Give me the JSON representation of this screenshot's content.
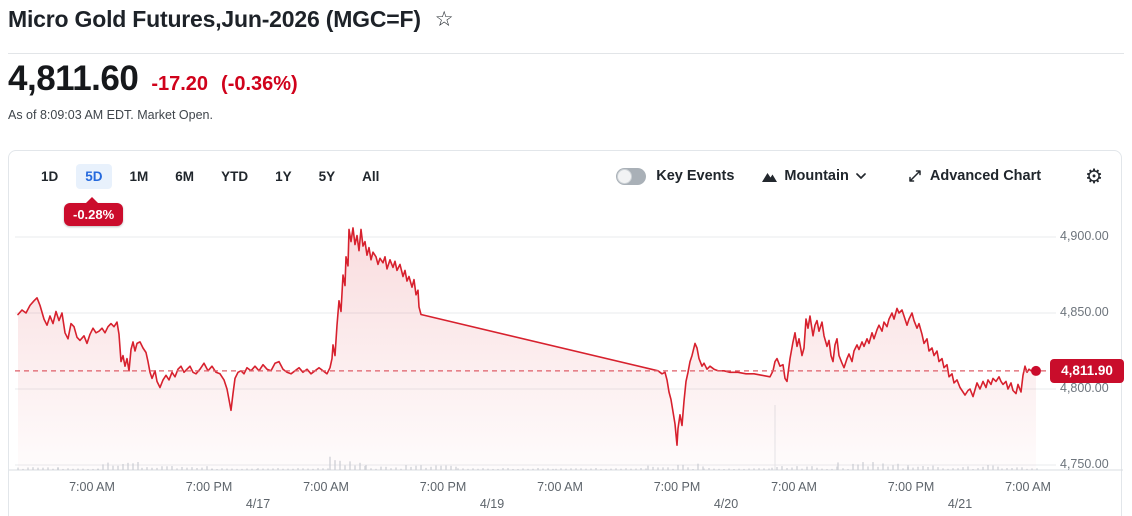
{
  "header": {
    "title": "Micro Gold Futures,Jun-2026 (MGC=F)",
    "price": "4,811.60",
    "change": "-17.20",
    "change_pct": "(-0.36%)",
    "as_of": "As of 8:09:03 AM EDT. Market Open."
  },
  "toolbar": {
    "ranges": [
      {
        "label": "1D",
        "selected": false
      },
      {
        "label": "5D",
        "selected": true
      },
      {
        "label": "1M",
        "selected": false
      },
      {
        "label": "6M",
        "selected": false
      },
      {
        "label": "YTD",
        "selected": false
      },
      {
        "label": "1Y",
        "selected": false
      },
      {
        "label": "5Y",
        "selected": false
      },
      {
        "label": "All",
        "selected": false
      }
    ],
    "range_badge": "-0.28%",
    "key_events_label": "Key Events",
    "key_events_enabled": false,
    "chart_type_label": "Mountain",
    "advanced_chart_label": "Advanced Chart",
    "settings_icon": "gear"
  },
  "colors": {
    "negative_text": "#d0021b",
    "badge_red": "#cb0c2c",
    "line_red": "#d7212e",
    "tab_blue": "#2569dd",
    "gridline": "#e9ebee"
  },
  "chart_data": {
    "type": "area",
    "symbol": "MGC=F",
    "legend": "none",
    "grid": true,
    "last_price": 4811.9,
    "last_price_label": "4,811.90",
    "ylim": [
      4740,
      4915
    ],
    "y_ticks": [
      {
        "label": "4,900.00",
        "value": 4900
      },
      {
        "label": "4,850.00",
        "value": 4850
      },
      {
        "label": "4,800.00",
        "value": 4800
      },
      {
        "label": "4,750.00",
        "value": 4750
      }
    ],
    "x_time_ticks": [
      {
        "label": "7:00 AM",
        "x": 92
      },
      {
        "label": "7:00 PM",
        "x": 209
      },
      {
        "label": "7:00 AM",
        "x": 326
      },
      {
        "label": "7:00 PM",
        "x": 443
      },
      {
        "label": "7:00 AM",
        "x": 560
      },
      {
        "label": "7:00 PM",
        "x": 677
      },
      {
        "label": "7:00 AM",
        "x": 794
      },
      {
        "label": "7:00 PM",
        "x": 911
      },
      {
        "label": "7:00 AM",
        "x": 1028
      }
    ],
    "x_date_ticks": [
      {
        "label": "4/17",
        "x": 258
      },
      {
        "label": "4/19",
        "x": 492
      },
      {
        "label": "4/20",
        "x": 726
      },
      {
        "label": "4/21",
        "x": 960
      }
    ],
    "x_session_gridline": 775,
    "points": [
      [
        18,
        4849
      ],
      [
        22,
        4852
      ],
      [
        26,
        4850
      ],
      [
        30,
        4855
      ],
      [
        34,
        4858
      ],
      [
        37,
        4860
      ],
      [
        40,
        4855
      ],
      [
        44,
        4846
      ],
      [
        47,
        4842
      ],
      [
        50,
        4848
      ],
      [
        53,
        4843
      ],
      [
        56,
        4851
      ],
      [
        59,
        4845
      ],
      [
        62,
        4850
      ],
      [
        65,
        4837
      ],
      [
        68,
        4833
      ],
      [
        71,
        4843
      ],
      [
        74,
        4841
      ],
      [
        77,
        4834
      ],
      [
        80,
        4832
      ],
      [
        84,
        4835
      ],
      [
        87,
        4830
      ],
      [
        90,
        4836
      ],
      [
        93,
        4840
      ],
      [
        96,
        4837
      ],
      [
        99,
        4838
      ],
      [
        102,
        4840
      ],
      [
        105,
        4837
      ],
      [
        108,
        4841
      ],
      [
        111,
        4843
      ],
      [
        114,
        4841
      ],
      [
        117,
        4844
      ],
      [
        119,
        4836
      ],
      [
        121,
        4818
      ],
      [
        123,
        4822
      ],
      [
        125,
        4815
      ],
      [
        127,
        4820
      ],
      [
        129,
        4812
      ],
      [
        131,
        4826
      ],
      [
        133,
        4831
      ],
      [
        135,
        4825
      ],
      [
        137,
        4830
      ],
      [
        140,
        4831
      ],
      [
        143,
        4827
      ],
      [
        146,
        4824
      ],
      [
        148,
        4818
      ],
      [
        150,
        4811
      ],
      [
        152,
        4807
      ],
      [
        155,
        4812
      ],
      [
        157,
        4805
      ],
      [
        160,
        4801
      ],
      [
        163,
        4806
      ],
      [
        166,
        4809
      ],
      [
        169,
        4806
      ],
      [
        172,
        4811
      ],
      [
        175,
        4808
      ],
      [
        178,
        4813
      ],
      [
        181,
        4815
      ],
      [
        184,
        4811
      ],
      [
        187,
        4813
      ],
      [
        190,
        4815
      ],
      [
        193,
        4811
      ],
      [
        196,
        4810
      ],
      [
        200,
        4813
      ],
      [
        204,
        4817
      ],
      [
        208,
        4812
      ],
      [
        212,
        4815
      ],
      [
        216,
        4811
      ],
      [
        220,
        4810
      ],
      [
        224,
        4806
      ],
      [
        227,
        4800
      ],
      [
        229,
        4793
      ],
      [
        231,
        4786
      ],
      [
        233,
        4797
      ],
      [
        235,
        4807
      ],
      [
        238,
        4811
      ],
      [
        241,
        4812
      ],
      [
        244,
        4810
      ],
      [
        247,
        4814
      ],
      [
        251,
        4812
      ],
      [
        255,
        4815
      ],
      [
        259,
        4812
      ],
      [
        263,
        4816
      ],
      [
        267,
        4813
      ],
      [
        271,
        4812
      ],
      [
        275,
        4817
      ],
      [
        279,
        4818
      ],
      [
        283,
        4813
      ],
      [
        287,
        4811
      ],
      [
        291,
        4810
      ],
      [
        295,
        4812
      ],
      [
        299,
        4814
      ],
      [
        303,
        4811
      ],
      [
        307,
        4813
      ],
      [
        311,
        4810
      ],
      [
        315,
        4812
      ],
      [
        319,
        4814
      ],
      [
        323,
        4812
      ],
      [
        327,
        4810
      ],
      [
        330,
        4814
      ],
      [
        332,
        4820
      ],
      [
        333,
        4829
      ],
      [
        335,
        4822
      ],
      [
        337,
        4842
      ],
      [
        339,
        4858
      ],
      [
        341,
        4851
      ],
      [
        343,
        4875
      ],
      [
        345,
        4868
      ],
      [
        346,
        4887
      ],
      [
        348,
        4881
      ],
      [
        349,
        4905
      ],
      [
        351,
        4897
      ],
      [
        353,
        4906
      ],
      [
        355,
        4895
      ],
      [
        357,
        4901
      ],
      [
        359,
        4891
      ],
      [
        361,
        4905
      ],
      [
        363,
        4894
      ],
      [
        365,
        4897
      ],
      [
        367,
        4888
      ],
      [
        369,
        4893
      ],
      [
        371,
        4885
      ],
      [
        373,
        4890
      ],
      [
        376,
        4887
      ],
      [
        378,
        4882
      ],
      [
        380,
        4886
      ],
      [
        383,
        4883
      ],
      [
        385,
        4887
      ],
      [
        387,
        4879
      ],
      [
        390,
        4885
      ],
      [
        393,
        4880
      ],
      [
        395,
        4884
      ],
      [
        397,
        4878
      ],
      [
        400,
        4882
      ],
      [
        403,
        4874
      ],
      [
        405,
        4878
      ],
      [
        407,
        4871
      ],
      [
        409,
        4874
      ],
      [
        412,
        4867
      ],
      [
        414,
        4872
      ],
      [
        416,
        4862
      ],
      [
        418,
        4865
      ],
      [
        419,
        4854
      ],
      [
        421,
        4849
      ],
      [
        658,
        4812
      ],
      [
        662,
        4810
      ],
      [
        665,
        4811
      ],
      [
        667,
        4806
      ],
      [
        669,
        4798
      ],
      [
        671,
        4793
      ],
      [
        673,
        4785
      ],
      [
        675,
        4777
      ],
      [
        677,
        4763
      ],
      [
        678,
        4774
      ],
      [
        680,
        4783
      ],
      [
        682,
        4776
      ],
      [
        684,
        4792
      ],
      [
        686,
        4805
      ],
      [
        688,
        4811
      ],
      [
        690,
        4818
      ],
      [
        692,
        4822
      ],
      [
        695,
        4830
      ],
      [
        697,
        4827
      ],
      [
        699,
        4820
      ],
      [
        702,
        4815
      ],
      [
        704,
        4817
      ],
      [
        707,
        4813
      ],
      [
        710,
        4815
      ],
      [
        714,
        4813
      ],
      [
        718,
        4812
      ],
      [
        724,
        4812
      ],
      [
        730,
        4811
      ],
      [
        738,
        4811
      ],
      [
        746,
        4810
      ],
      [
        754,
        4810
      ],
      [
        762,
        4809
      ],
      [
        770,
        4808
      ],
      [
        773,
        4812
      ],
      [
        775,
        4818
      ],
      [
        777,
        4820
      ],
      [
        780,
        4815
      ],
      [
        783,
        4816
      ],
      [
        785,
        4807
      ],
      [
        787,
        4805
      ],
      [
        790,
        4820
      ],
      [
        793,
        4831
      ],
      [
        795,
        4837
      ],
      [
        797,
        4828
      ],
      [
        799,
        4833
      ],
      [
        802,
        4822
      ],
      [
        804,
        4827
      ],
      [
        806,
        4846
      ],
      [
        808,
        4840
      ],
      [
        810,
        4848
      ],
      [
        813,
        4835
      ],
      [
        815,
        4842
      ],
      [
        817,
        4845
      ],
      [
        819,
        4838
      ],
      [
        822,
        4844
      ],
      [
        824,
        4835
      ],
      [
        827,
        4828
      ],
      [
        829,
        4832
      ],
      [
        831,
        4822
      ],
      [
        833,
        4818
      ],
      [
        835,
        4829
      ],
      [
        837,
        4833
      ],
      [
        839,
        4822
      ],
      [
        842,
        4817
      ],
      [
        844,
        4814
      ],
      [
        847,
        4820
      ],
      [
        849,
        4823
      ],
      [
        852,
        4818
      ],
      [
        854,
        4825
      ],
      [
        857,
        4829
      ],
      [
        859,
        4826
      ],
      [
        862,
        4831
      ],
      [
        864,
        4828
      ],
      [
        867,
        4833
      ],
      [
        869,
        4830
      ],
      [
        872,
        4837
      ],
      [
        874,
        4833
      ],
      [
        877,
        4839
      ],
      [
        879,
        4842
      ],
      [
        882,
        4838
      ],
      [
        884,
        4844
      ],
      [
        887,
        4841
      ],
      [
        889,
        4846
      ],
      [
        892,
        4850
      ],
      [
        894,
        4846
      ],
      [
        897,
        4853
      ],
      [
        899,
        4850
      ],
      [
        902,
        4852
      ],
      [
        904,
        4848
      ],
      [
        907,
        4842
      ],
      [
        909,
        4846
      ],
      [
        912,
        4850
      ],
      [
        914,
        4845
      ],
      [
        917,
        4840
      ],
      [
        919,
        4843
      ],
      [
        922,
        4836
      ],
      [
        924,
        4830
      ],
      [
        927,
        4833
      ],
      [
        929,
        4825
      ],
      [
        932,
        4827
      ],
      [
        934,
        4822
      ],
      [
        937,
        4825
      ],
      [
        939,
        4818
      ],
      [
        942,
        4820
      ],
      [
        944,
        4814
      ],
      [
        947,
        4816
      ],
      [
        949,
        4808
      ],
      [
        952,
        4810
      ],
      [
        954,
        4804
      ],
      [
        957,
        4806
      ],
      [
        960,
        4801
      ],
      [
        963,
        4798
      ],
      [
        965,
        4796
      ],
      [
        968,
        4799
      ],
      [
        970,
        4800
      ],
      [
        973,
        4795
      ],
      [
        977,
        4804
      ],
      [
        980,
        4800
      ],
      [
        983,
        4805
      ],
      [
        986,
        4801
      ],
      [
        988,
        4806
      ],
      [
        991,
        4803
      ],
      [
        993,
        4807
      ],
      [
        996,
        4805
      ],
      [
        999,
        4808
      ],
      [
        1001,
        4805
      ],
      [
        1003,
        4803
      ],
      [
        1006,
        4805
      ],
      [
        1008,
        4800
      ],
      [
        1011,
        4804
      ],
      [
        1013,
        4799
      ],
      [
        1016,
        4797
      ],
      [
        1018,
        4803
      ],
      [
        1021,
        4798
      ],
      [
        1023,
        4809
      ],
      [
        1025,
        4815
      ],
      [
        1027,
        4811
      ],
      [
        1029,
        4813
      ],
      [
        1031,
        4812
      ],
      [
        1034,
        4812
      ],
      [
        1036,
        4811.9
      ]
    ],
    "volume_clusters": [
      [
        18,
        58,
        3
      ],
      [
        58,
        98,
        2
      ],
      [
        98,
        142,
        8
      ],
      [
        142,
        212,
        4
      ],
      [
        212,
        258,
        2
      ],
      [
        258,
        330,
        2
      ],
      [
        330,
        366,
        14
      ],
      [
        366,
        458,
        5
      ],
      [
        458,
        556,
        2
      ],
      [
        556,
        648,
        2
      ],
      [
        648,
        704,
        7
      ],
      [
        704,
        772,
        2
      ],
      [
        772,
        838,
        4
      ],
      [
        838,
        908,
        9
      ],
      [
        908,
        1002,
        5
      ],
      [
        1002,
        1037,
        3
      ]
    ]
  }
}
